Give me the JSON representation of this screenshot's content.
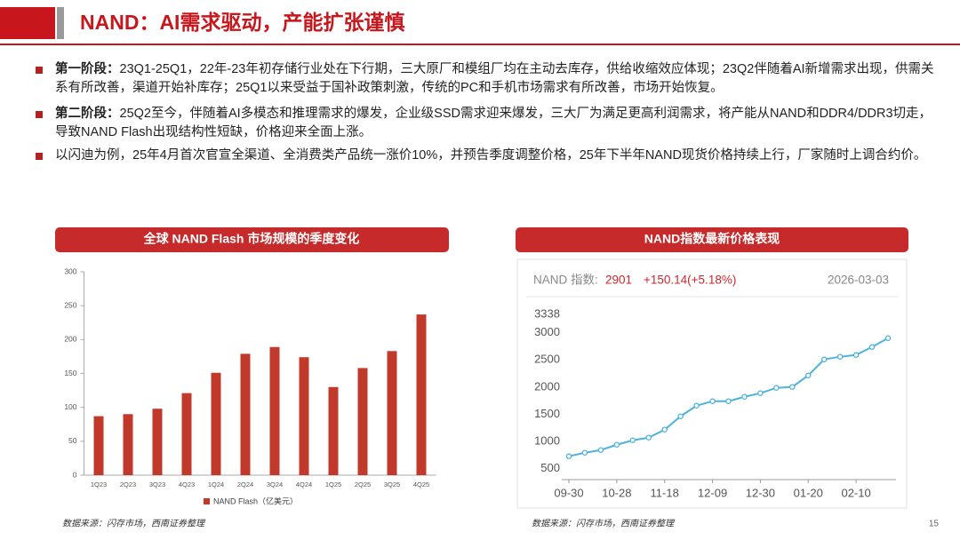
{
  "header": {
    "title": "NAND：AI需求驱动，产能扩张谨慎"
  },
  "bullets": [
    {
      "label": "第一阶段：",
      "text": "23Q1-25Q1，22年-23年初存储行业处在下行期，三大原厂和模组厂均在主动去库存，供给收缩效应体现；23Q2伴随着AI新增需求出现，供需关系有所改善，渠道开始补库存；25Q1以来受益于国补政策刺激，传统的PC和手机市场需求有所改善，市场开始恢复。"
    },
    {
      "label": "第二阶段：",
      "text": "25Q2至今，伴随着AI多模态和推理需求的爆发，企业级SSD需求迎来爆发，三大厂为满足更高利润需求，将产能从NAND和DDR4/DDR3切走，导致NAND Flash出现结构性短缺，价格迎来全面上涨。"
    },
    {
      "text": "以闪迪为例，25年4月首次官宣全渠道、全消费类产品统一涨价10%，并预告季度调整价格，25年下半年NAND现货价格持续上行，厂家随时上调合约价。"
    }
  ],
  "chart_data": [
    {
      "type": "bar",
      "title": "全球 NAND Flash 市场规模的季度变化",
      "categories": [
        "1Q23",
        "2Q23",
        "3Q23",
        "4Q23",
        "1Q24",
        "2Q24",
        "3Q24",
        "4Q24",
        "1Q25",
        "2Q25",
        "3Q25",
        "4Q25"
      ],
      "series": [
        {
          "name": "NAND Flash（亿美元）",
          "color": "#c0392b",
          "values": [
            87,
            90,
            98,
            121,
            151,
            179,
            189,
            174,
            130,
            158,
            183,
            237
          ]
        }
      ],
      "ylim": [
        0,
        300
      ],
      "yticks": [
        0,
        50,
        100,
        150,
        200,
        250,
        300
      ],
      "grid": false
    },
    {
      "type": "line",
      "title": "NAND指数最新价格表现",
      "index_label": "NAND 指数:",
      "index_value": 2901,
      "change": "+150.14(+5.18%)",
      "date": "2026-03-03",
      "categories": [
        "09-30",
        null,
        null,
        "10-28",
        null,
        null,
        "11-18",
        null,
        null,
        "12-09",
        null,
        null,
        "12-30",
        null,
        null,
        "01-20",
        null,
        null,
        "02-10",
        null,
        null
      ],
      "color": "#4db3dd",
      "values": [
        730,
        794,
        843,
        941,
        1023,
        1072,
        1219,
        1464,
        1660,
        1742,
        1742,
        1823,
        1889,
        1987,
        2003,
        2216,
        2510,
        2559,
        2592,
        2739,
        2901
      ],
      "ylim": [
        300,
        3338
      ],
      "yticks": [
        500,
        1000,
        1500,
        2000,
        2500,
        3000,
        3338
      ],
      "grid": false
    }
  ],
  "footer": {
    "sources": [
      "数据来源：闪存市场，西南证券整理",
      "数据来源：闪存市场，西南证券整理"
    ],
    "page": "15"
  }
}
